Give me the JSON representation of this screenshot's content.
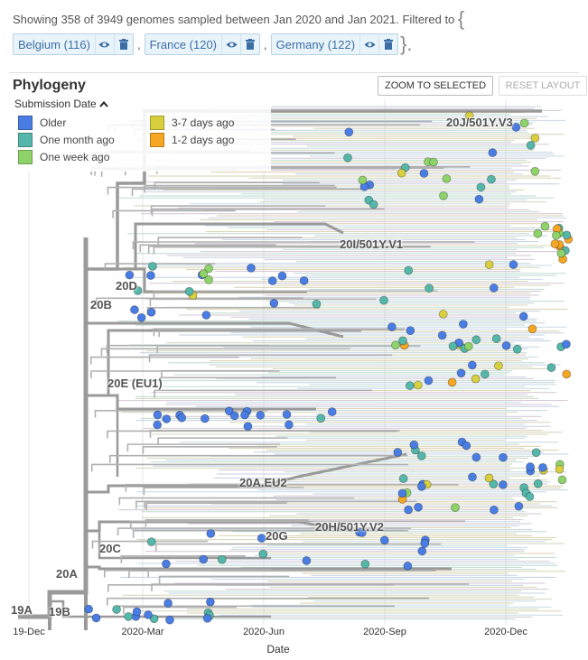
{
  "summary": {
    "text": "Showing 358 of 3949 genomes sampled between Jan 2020 and Jan 2021. Filtered to",
    "open_brace": "{",
    "close_brace": "}.",
    "comma": ","
  },
  "filters": [
    {
      "label": "Belgium (116)"
    },
    {
      "label": "France (120)"
    },
    {
      "label": "Germany (122)"
    }
  ],
  "panel": {
    "title": "Phylogeny",
    "zoom_button": "ZOOM TO SELECTED",
    "reset_button": "RESET LAYOUT"
  },
  "legend": {
    "title": "Submission Date",
    "toggle_icon": "chevron-up-icon",
    "items": [
      {
        "label": "Older",
        "color": "#4a7de3"
      },
      {
        "label": "One month ago",
        "color": "#54b7a9"
      },
      {
        "label": "One week ago",
        "color": "#8ed36a"
      },
      {
        "label": "3-7 days ago",
        "color": "#d8cf3f"
      },
      {
        "label": "1-2 days ago",
        "color": "#f5a623"
      }
    ]
  },
  "clades": [
    "20J/501Y.V3",
    "20I/501Y.V1",
    "20D",
    "20B",
    "20E (EU1)",
    "20A.EU2",
    "20H/501Y.V2",
    "20G",
    "20C",
    "20A",
    "19A",
    "19B"
  ],
  "axis": {
    "ticks": [
      "19-Dec",
      "2020-Mar",
      "2020-Jun",
      "2020-Sep",
      "2020-Dec"
    ],
    "title": "Date"
  }
}
